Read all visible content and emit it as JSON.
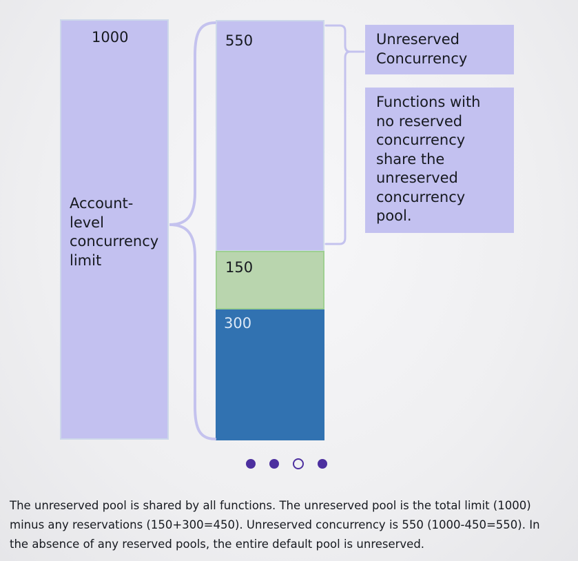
{
  "diagram": {
    "account_box": {
      "value": "1000",
      "label": "Account-\nlevel\nconcurrency\nlimit"
    },
    "segments": [
      {
        "value": "550",
        "color": "#c3c1f0",
        "kind": "unreserved"
      },
      {
        "value": "150",
        "color": "#b9d5ae",
        "kind": "reserved"
      },
      {
        "value": "300",
        "color": "#3172b1",
        "kind": "reserved"
      }
    ],
    "callouts": {
      "title": "Unreserved Concurrency",
      "description": "Functions with no reserved concurrency share the unreserved concurrency pool."
    },
    "bracket_color": "#c4c2ee"
  },
  "carousel": {
    "dot_count": 4,
    "active_index": 2,
    "dot_color": "#4c2f9f"
  },
  "caption": "The unreserved pool is shared by all functions. The unreserved pool is the total limit (1000) minus any reservations (150+300=450). Unreserved concurrency is 550 (1000-450=550). In the absence of any reserved pools, the entire default pool is unreserved."
}
